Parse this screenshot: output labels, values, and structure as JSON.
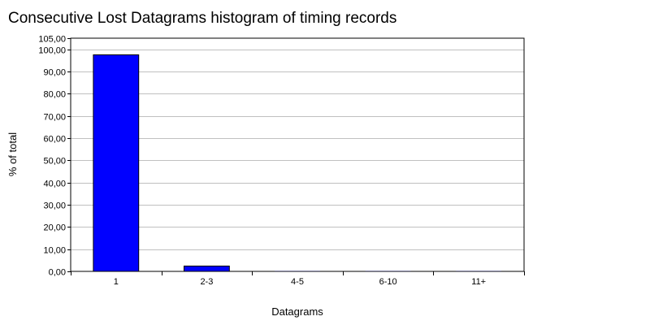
{
  "chart_data": {
    "type": "bar",
    "title": "Consecutive Lost Datagrams histogram of timing records",
    "xlabel": "Datagrams",
    "ylabel": "% of total",
    "categories": [
      "1",
      "2-3",
      "4-5",
      "6-10",
      "11+"
    ],
    "values": [
      97.5,
      2.4,
      0.05,
      0.05,
      0.05
    ],
    "ylim": [
      0,
      105
    ],
    "yticks": [
      "0,00",
      "10,00",
      "20,00",
      "30,00",
      "40,00",
      "50,00",
      "60,00",
      "70,00",
      "80,00",
      "90,00",
      "100,00",
      "105,00"
    ],
    "grid": true,
    "legend": "none",
    "bar_color": "#0000ff"
  }
}
